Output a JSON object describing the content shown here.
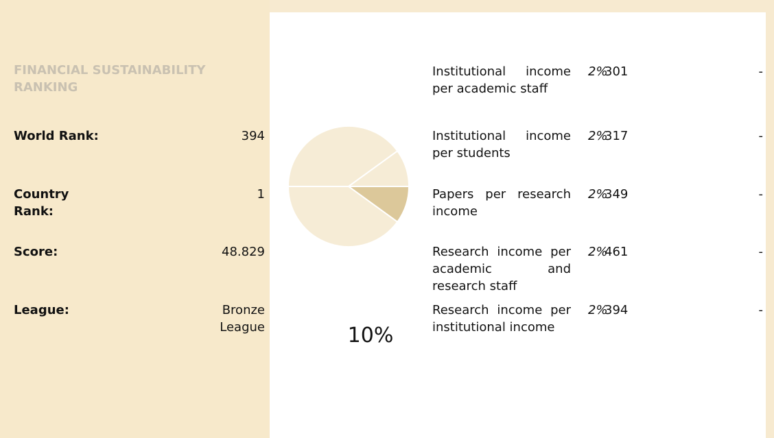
{
  "panel": {
    "title": "FINANCIAL SUSTAINABILITY RANKING",
    "rows": [
      {
        "label": "World Rank:",
        "value": 394
      },
      {
        "label": "Country Rank:",
        "value": 1
      },
      {
        "label": "Score:",
        "value": "48.829"
      },
      {
        "label": "League:",
        "value": "Bronze League"
      }
    ]
  },
  "chart_data": {
    "type": "pie",
    "values": [
      40,
      10,
      10,
      40
    ],
    "colors": [
      "#f6ecd6",
      "#f6ecd6",
      "#dcc89a",
      "#f6ecd6"
    ],
    "weight_label": "10%"
  },
  "indicators": [
    {
      "name": "Institutional income per academic staff",
      "weight": "2%",
      "rank": 301,
      "change": "-"
    },
    {
      "name": "Institutional income per students",
      "weight": "2%",
      "rank": 317,
      "change": "-"
    },
    {
      "name": "Papers per research income",
      "weight": "2%",
      "rank": 349,
      "change": "-"
    },
    {
      "name": "Research income per academic and research staff",
      "weight": "2%",
      "rank": 461,
      "change": "-"
    },
    {
      "name": "Research income per institutional income",
      "weight": "2%",
      "rank": 394,
      "change": "-"
    }
  ]
}
